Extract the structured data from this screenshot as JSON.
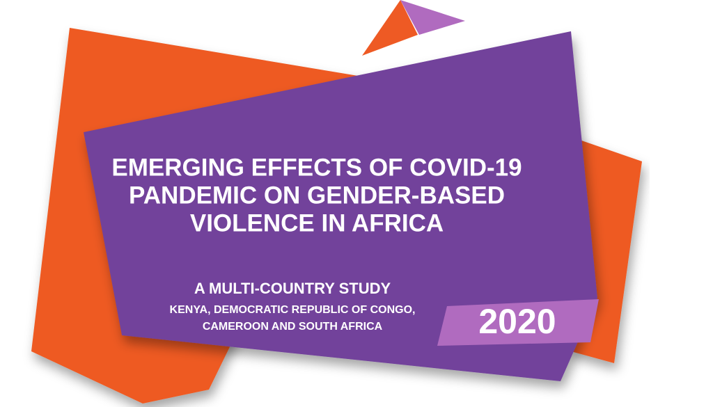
{
  "title": {
    "lines": [
      "EMERGING EFFECTS OF COVID-19",
      "PANDEMIC ON GENDER-BASED",
      "VIOLENCE IN AFRICA"
    ]
  },
  "subtitle": "A MULTI-COUNTRY STUDY",
  "countries": {
    "lines": [
      "KENYA, DEMOCRATIC REPUBLIC OF CONGO,",
      "CAMEROON AND SOUTH AFRICA"
    ]
  },
  "year": "2020"
}
